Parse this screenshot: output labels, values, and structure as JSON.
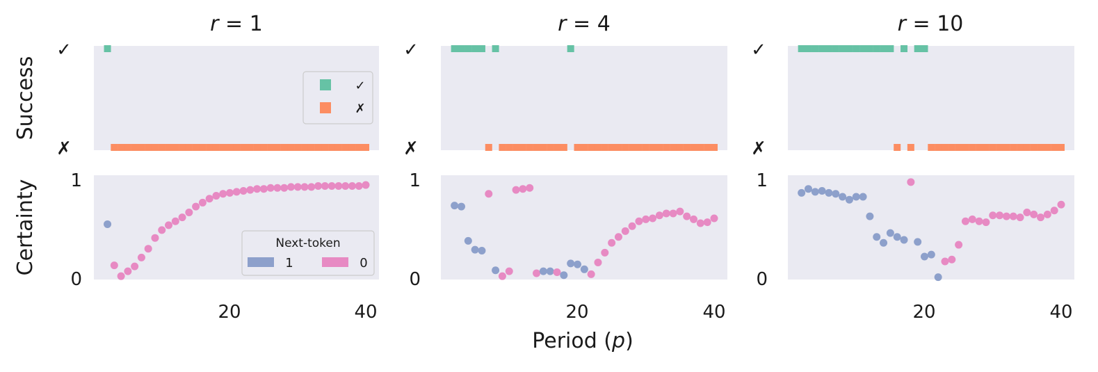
{
  "colors": {
    "success": "#66c2a5",
    "fail": "#fc8d62",
    "next_token_1": "#8da0cb",
    "next_token_0": "#e78ac3",
    "background": "#eaeaf2"
  },
  "labels": {
    "y_success": "Success",
    "y_certainty": "Certainty",
    "x_label_prefix": "Period (",
    "x_label_var": "p",
    "x_label_suffix": ")",
    "check": "✓",
    "cross": "✗",
    "certainty_ticks": [
      "1",
      "0"
    ],
    "x_ticks": [
      "20",
      "40"
    ]
  },
  "legend_success": {
    "entries": [
      {
        "label": "✓",
        "color": "#66c2a5"
      },
      {
        "label": "✗",
        "color": "#fc8d62"
      }
    ]
  },
  "legend_certainty": {
    "title": "Next-token",
    "entries": [
      {
        "label": "1",
        "color": "#8da0cb"
      },
      {
        "label": "0",
        "color": "#e78ac3"
      }
    ]
  },
  "chart_data": [
    {
      "type": "scatter",
      "title_var": "r",
      "title_eq": " = ",
      "title_val": "1",
      "xlabel": "Period (p)",
      "xlim": [
        0,
        42
      ],
      "success": [
        {
          "x": 2,
          "ok": true
        },
        {
          "x": 3,
          "ok": false
        },
        {
          "x": 4,
          "ok": false
        },
        {
          "x": 5,
          "ok": false
        },
        {
          "x": 6,
          "ok": false
        },
        {
          "x": 7,
          "ok": false
        },
        {
          "x": 8,
          "ok": false
        },
        {
          "x": 9,
          "ok": false
        },
        {
          "x": 10,
          "ok": false
        },
        {
          "x": 11,
          "ok": false
        },
        {
          "x": 12,
          "ok": false
        },
        {
          "x": 13,
          "ok": false
        },
        {
          "x": 14,
          "ok": false
        },
        {
          "x": 15,
          "ok": false
        },
        {
          "x": 16,
          "ok": false
        },
        {
          "x": 17,
          "ok": false
        },
        {
          "x": 18,
          "ok": false
        },
        {
          "x": 19,
          "ok": false
        },
        {
          "x": 20,
          "ok": false
        },
        {
          "x": 21,
          "ok": false
        },
        {
          "x": 22,
          "ok": false
        },
        {
          "x": 23,
          "ok": false
        },
        {
          "x": 24,
          "ok": false
        },
        {
          "x": 25,
          "ok": false
        },
        {
          "x": 26,
          "ok": false
        },
        {
          "x": 27,
          "ok": false
        },
        {
          "x": 28,
          "ok": false
        },
        {
          "x": 29,
          "ok": false
        },
        {
          "x": 30,
          "ok": false
        },
        {
          "x": 31,
          "ok": false
        },
        {
          "x": 32,
          "ok": false
        },
        {
          "x": 33,
          "ok": false
        },
        {
          "x": 34,
          "ok": false
        },
        {
          "x": 35,
          "ok": false
        },
        {
          "x": 36,
          "ok": false
        },
        {
          "x": 37,
          "ok": false
        },
        {
          "x": 38,
          "ok": false
        },
        {
          "x": 39,
          "ok": false
        },
        {
          "x": 40,
          "ok": false
        }
      ],
      "certainty": [
        {
          "x": 2,
          "y": 0.55,
          "token": 1
        },
        {
          "x": 3,
          "y": 0.13,
          "token": 0
        },
        {
          "x": 4,
          "y": 0.02,
          "token": 0
        },
        {
          "x": 5,
          "y": 0.07,
          "token": 0
        },
        {
          "x": 6,
          "y": 0.12,
          "token": 0
        },
        {
          "x": 7,
          "y": 0.21,
          "token": 0
        },
        {
          "x": 8,
          "y": 0.3,
          "token": 0
        },
        {
          "x": 9,
          "y": 0.41,
          "token": 0
        },
        {
          "x": 10,
          "y": 0.49,
          "token": 0
        },
        {
          "x": 11,
          "y": 0.54,
          "token": 0
        },
        {
          "x": 12,
          "y": 0.58,
          "token": 0
        },
        {
          "x": 13,
          "y": 0.62,
          "token": 0
        },
        {
          "x": 14,
          "y": 0.67,
          "token": 0
        },
        {
          "x": 15,
          "y": 0.73,
          "token": 0
        },
        {
          "x": 16,
          "y": 0.77,
          "token": 0
        },
        {
          "x": 17,
          "y": 0.81,
          "token": 0
        },
        {
          "x": 18,
          "y": 0.84,
          "token": 0
        },
        {
          "x": 19,
          "y": 0.86,
          "token": 0
        },
        {
          "x": 20,
          "y": 0.87,
          "token": 0
        },
        {
          "x": 21,
          "y": 0.88,
          "token": 0
        },
        {
          "x": 22,
          "y": 0.89,
          "token": 0
        },
        {
          "x": 23,
          "y": 0.9,
          "token": 0
        },
        {
          "x": 24,
          "y": 0.91,
          "token": 0
        },
        {
          "x": 25,
          "y": 0.91,
          "token": 0
        },
        {
          "x": 26,
          "y": 0.92,
          "token": 0
        },
        {
          "x": 27,
          "y": 0.92,
          "token": 0
        },
        {
          "x": 28,
          "y": 0.92,
          "token": 0
        },
        {
          "x": 29,
          "y": 0.93,
          "token": 0
        },
        {
          "x": 30,
          "y": 0.93,
          "token": 0
        },
        {
          "x": 31,
          "y": 0.93,
          "token": 0
        },
        {
          "x": 32,
          "y": 0.93,
          "token": 0
        },
        {
          "x": 33,
          "y": 0.94,
          "token": 0
        },
        {
          "x": 34,
          "y": 0.94,
          "token": 0
        },
        {
          "x": 35,
          "y": 0.94,
          "token": 0
        },
        {
          "x": 36,
          "y": 0.94,
          "token": 0
        },
        {
          "x": 37,
          "y": 0.94,
          "token": 0
        },
        {
          "x": 38,
          "y": 0.94,
          "token": 0
        },
        {
          "x": 39,
          "y": 0.94,
          "token": 0
        },
        {
          "x": 40,
          "y": 0.95,
          "token": 0
        }
      ]
    },
    {
      "type": "scatter",
      "title_var": "r",
      "title_eq": " = ",
      "title_val": "4",
      "xlabel": "Period (p)",
      "xlim": [
        0,
        42
      ],
      "success": [
        {
          "x": 2,
          "ok": true
        },
        {
          "x": 3,
          "ok": true
        },
        {
          "x": 4,
          "ok": true
        },
        {
          "x": 5,
          "ok": true
        },
        {
          "x": 6,
          "ok": true
        },
        {
          "x": 7,
          "ok": false
        },
        {
          "x": 8,
          "ok": true
        },
        {
          "x": 9,
          "ok": false
        },
        {
          "x": 10,
          "ok": false
        },
        {
          "x": 11,
          "ok": false
        },
        {
          "x": 12,
          "ok": false
        },
        {
          "x": 13,
          "ok": false
        },
        {
          "x": 14,
          "ok": false
        },
        {
          "x": 15,
          "ok": false
        },
        {
          "x": 16,
          "ok": false
        },
        {
          "x": 17,
          "ok": false
        },
        {
          "x": 18,
          "ok": false
        },
        {
          "x": 19,
          "ok": true
        },
        {
          "x": 20,
          "ok": false
        },
        {
          "x": 21,
          "ok": false
        },
        {
          "x": 22,
          "ok": false
        },
        {
          "x": 23,
          "ok": false
        },
        {
          "x": 24,
          "ok": false
        },
        {
          "x": 25,
          "ok": false
        },
        {
          "x": 26,
          "ok": false
        },
        {
          "x": 27,
          "ok": false
        },
        {
          "x": 28,
          "ok": false
        },
        {
          "x": 29,
          "ok": false
        },
        {
          "x": 30,
          "ok": false
        },
        {
          "x": 31,
          "ok": false
        },
        {
          "x": 32,
          "ok": false
        },
        {
          "x": 33,
          "ok": false
        },
        {
          "x": 34,
          "ok": false
        },
        {
          "x": 35,
          "ok": false
        },
        {
          "x": 36,
          "ok": false
        },
        {
          "x": 37,
          "ok": false
        },
        {
          "x": 38,
          "ok": false
        },
        {
          "x": 39,
          "ok": false
        },
        {
          "x": 40,
          "ok": false
        }
      ],
      "certainty": [
        {
          "x": 2,
          "y": 0.74,
          "token": 1
        },
        {
          "x": 3,
          "y": 0.73,
          "token": 1
        },
        {
          "x": 4,
          "y": 0.38,
          "token": 1
        },
        {
          "x": 5,
          "y": 0.29,
          "token": 1
        },
        {
          "x": 6,
          "y": 0.28,
          "token": 1
        },
        {
          "x": 7,
          "y": 0.86,
          "token": 0
        },
        {
          "x": 8,
          "y": 0.08,
          "token": 1
        },
        {
          "x": 9,
          "y": 0.02,
          "token": 0
        },
        {
          "x": 10,
          "y": 0.07,
          "token": 0
        },
        {
          "x": 11,
          "y": 0.9,
          "token": 0
        },
        {
          "x": 12,
          "y": 0.91,
          "token": 0
        },
        {
          "x": 13,
          "y": 0.92,
          "token": 0
        },
        {
          "x": 14,
          "y": 0.05,
          "token": 0
        },
        {
          "x": 15,
          "y": 0.07,
          "token": 1
        },
        {
          "x": 16,
          "y": 0.07,
          "token": 1
        },
        {
          "x": 17,
          "y": 0.06,
          "token": 0
        },
        {
          "x": 18,
          "y": 0.03,
          "token": 1
        },
        {
          "x": 19,
          "y": 0.15,
          "token": 1
        },
        {
          "x": 20,
          "y": 0.14,
          "token": 1
        },
        {
          "x": 21,
          "y": 0.09,
          "token": 1
        },
        {
          "x": 22,
          "y": 0.04,
          "token": 0
        },
        {
          "x": 23,
          "y": 0.16,
          "token": 0
        },
        {
          "x": 24,
          "y": 0.26,
          "token": 0
        },
        {
          "x": 25,
          "y": 0.36,
          "token": 0
        },
        {
          "x": 26,
          "y": 0.42,
          "token": 0
        },
        {
          "x": 27,
          "y": 0.48,
          "token": 0
        },
        {
          "x": 28,
          "y": 0.53,
          "token": 0
        },
        {
          "x": 29,
          "y": 0.58,
          "token": 0
        },
        {
          "x": 30,
          "y": 0.6,
          "token": 0
        },
        {
          "x": 31,
          "y": 0.61,
          "token": 0
        },
        {
          "x": 32,
          "y": 0.64,
          "token": 0
        },
        {
          "x": 33,
          "y": 0.66,
          "token": 0
        },
        {
          "x": 34,
          "y": 0.66,
          "token": 0
        },
        {
          "x": 35,
          "y": 0.68,
          "token": 0
        },
        {
          "x": 36,
          "y": 0.63,
          "token": 0
        },
        {
          "x": 37,
          "y": 0.6,
          "token": 0
        },
        {
          "x": 38,
          "y": 0.56,
          "token": 0
        },
        {
          "x": 39,
          "y": 0.57,
          "token": 0
        },
        {
          "x": 40,
          "y": 0.61,
          "token": 0
        }
      ]
    },
    {
      "type": "scatter",
      "title_var": "r",
      "title_eq": " = ",
      "title_val": "10",
      "xlabel": "Period (p)",
      "xlim": [
        0,
        42
      ],
      "success": [
        {
          "x": 2,
          "ok": true
        },
        {
          "x": 3,
          "ok": true
        },
        {
          "x": 4,
          "ok": true
        },
        {
          "x": 5,
          "ok": true
        },
        {
          "x": 6,
          "ok": true
        },
        {
          "x": 7,
          "ok": true
        },
        {
          "x": 8,
          "ok": true
        },
        {
          "x": 9,
          "ok": true
        },
        {
          "x": 10,
          "ok": true
        },
        {
          "x": 11,
          "ok": true
        },
        {
          "x": 12,
          "ok": true
        },
        {
          "x": 13,
          "ok": true
        },
        {
          "x": 14,
          "ok": true
        },
        {
          "x": 15,
          "ok": true
        },
        {
          "x": 16,
          "ok": false
        },
        {
          "x": 17,
          "ok": true
        },
        {
          "x": 18,
          "ok": false
        },
        {
          "x": 19,
          "ok": true
        },
        {
          "x": 20,
          "ok": true
        },
        {
          "x": 21,
          "ok": false
        },
        {
          "x": 22,
          "ok": false
        },
        {
          "x": 23,
          "ok": false
        },
        {
          "x": 24,
          "ok": false
        },
        {
          "x": 25,
          "ok": false
        },
        {
          "x": 26,
          "ok": false
        },
        {
          "x": 27,
          "ok": false
        },
        {
          "x": 28,
          "ok": false
        },
        {
          "x": 29,
          "ok": false
        },
        {
          "x": 30,
          "ok": false
        },
        {
          "x": 31,
          "ok": false
        },
        {
          "x": 32,
          "ok": false
        },
        {
          "x": 33,
          "ok": false
        },
        {
          "x": 34,
          "ok": false
        },
        {
          "x": 35,
          "ok": false
        },
        {
          "x": 36,
          "ok": false
        },
        {
          "x": 37,
          "ok": false
        },
        {
          "x": 38,
          "ok": false
        },
        {
          "x": 39,
          "ok": false
        },
        {
          "x": 40,
          "ok": false
        }
      ],
      "certainty": [
        {
          "x": 2,
          "y": 0.87,
          "token": 1
        },
        {
          "x": 3,
          "y": 0.91,
          "token": 1
        },
        {
          "x": 4,
          "y": 0.88,
          "token": 1
        },
        {
          "x": 5,
          "y": 0.89,
          "token": 1
        },
        {
          "x": 6,
          "y": 0.87,
          "token": 1
        },
        {
          "x": 7,
          "y": 0.86,
          "token": 1
        },
        {
          "x": 8,
          "y": 0.83,
          "token": 1
        },
        {
          "x": 9,
          "y": 0.8,
          "token": 1
        },
        {
          "x": 10,
          "y": 0.83,
          "token": 1
        },
        {
          "x": 11,
          "y": 0.83,
          "token": 1
        },
        {
          "x": 12,
          "y": 0.63,
          "token": 1
        },
        {
          "x": 13,
          "y": 0.42,
          "token": 1
        },
        {
          "x": 14,
          "y": 0.36,
          "token": 1
        },
        {
          "x": 15,
          "y": 0.46,
          "token": 1
        },
        {
          "x": 16,
          "y": 0.42,
          "token": 1
        },
        {
          "x": 17,
          "y": 0.39,
          "token": 1
        },
        {
          "x": 18,
          "y": 0.98,
          "token": 0
        },
        {
          "x": 19,
          "y": 0.37,
          "token": 1
        },
        {
          "x": 20,
          "y": 0.22,
          "token": 1
        },
        {
          "x": 21,
          "y": 0.24,
          "token": 1
        },
        {
          "x": 22,
          "y": 0.01,
          "token": 1
        },
        {
          "x": 23,
          "y": 0.17,
          "token": 0
        },
        {
          "x": 24,
          "y": 0.19,
          "token": 0
        },
        {
          "x": 25,
          "y": 0.34,
          "token": 0
        },
        {
          "x": 26,
          "y": 0.58,
          "token": 0
        },
        {
          "x": 27,
          "y": 0.6,
          "token": 0
        },
        {
          "x": 28,
          "y": 0.58,
          "token": 0
        },
        {
          "x": 29,
          "y": 0.57,
          "token": 0
        },
        {
          "x": 30,
          "y": 0.64,
          "token": 0
        },
        {
          "x": 31,
          "y": 0.64,
          "token": 0
        },
        {
          "x": 32,
          "y": 0.63,
          "token": 0
        },
        {
          "x": 33,
          "y": 0.63,
          "token": 0
        },
        {
          "x": 34,
          "y": 0.62,
          "token": 0
        },
        {
          "x": 35,
          "y": 0.67,
          "token": 0
        },
        {
          "x": 36,
          "y": 0.65,
          "token": 0
        },
        {
          "x": 37,
          "y": 0.62,
          "token": 0
        },
        {
          "x": 38,
          "y": 0.65,
          "token": 0
        },
        {
          "x": 39,
          "y": 0.69,
          "token": 0
        },
        {
          "x": 40,
          "y": 0.75,
          "token": 0
        }
      ]
    }
  ]
}
